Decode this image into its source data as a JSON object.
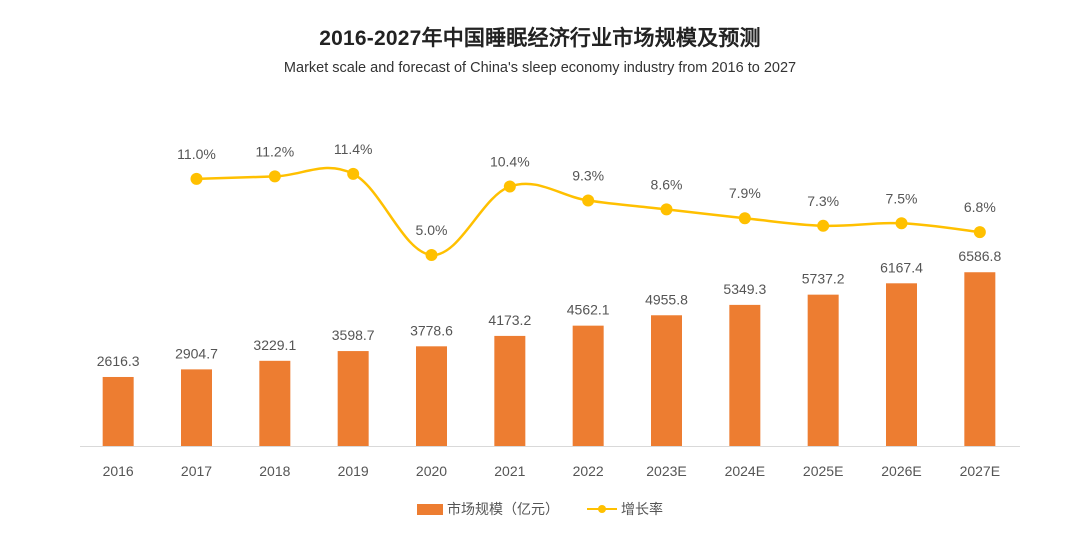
{
  "chart_data": {
    "type": "bar",
    "title": "2016-2027年中国睡眠经济行业市场规模及预测",
    "subtitle": "Market scale and forecast of China's sleep economy industry from 2016 to 2027",
    "categories": [
      "2016",
      "2017",
      "2018",
      "2019",
      "2020",
      "2021",
      "2022",
      "2023E",
      "2024E",
      "2025E",
      "2026E",
      "2027E"
    ],
    "series": [
      {
        "name": "市场规模（亿元）",
        "type": "bar",
        "color": "#ED7D31",
        "values": [
          2616.3,
          2904.7,
          3229.1,
          3598.7,
          3778.6,
          4173.2,
          4562.1,
          4955.8,
          5349.3,
          5737.2,
          6167.4,
          6586.8
        ],
        "labels": [
          "2616.3",
          "2904.7",
          "3229.1",
          "3598.7",
          "3778.6",
          "4173.2",
          "4562.1",
          "4955.8",
          "5349.3",
          "5737.2",
          "6167.4",
          "6586.8"
        ]
      },
      {
        "name": "增长率",
        "type": "line",
        "color": "#FFC000",
        "values": [
          null,
          11.0,
          11.2,
          11.4,
          5.0,
          10.4,
          9.3,
          8.6,
          7.9,
          7.3,
          7.5,
          6.8
        ],
        "labels": [
          "",
          "11.0%",
          "11.2%",
          "11.4%",
          "5.0%",
          "10.4%",
          "9.3%",
          "8.6%",
          "7.9%",
          "7.3%",
          "7.5%",
          "6.8%"
        ]
      }
    ],
    "xlabel": "",
    "ylabel": "",
    "ylim": [
      0,
      16900
    ],
    "y2lim": [
      0,
      25
    ],
    "grid": false,
    "legend_position": "bottom"
  },
  "legend": {
    "bar_label": "市场规模（亿元）",
    "line_label": "增长率"
  }
}
